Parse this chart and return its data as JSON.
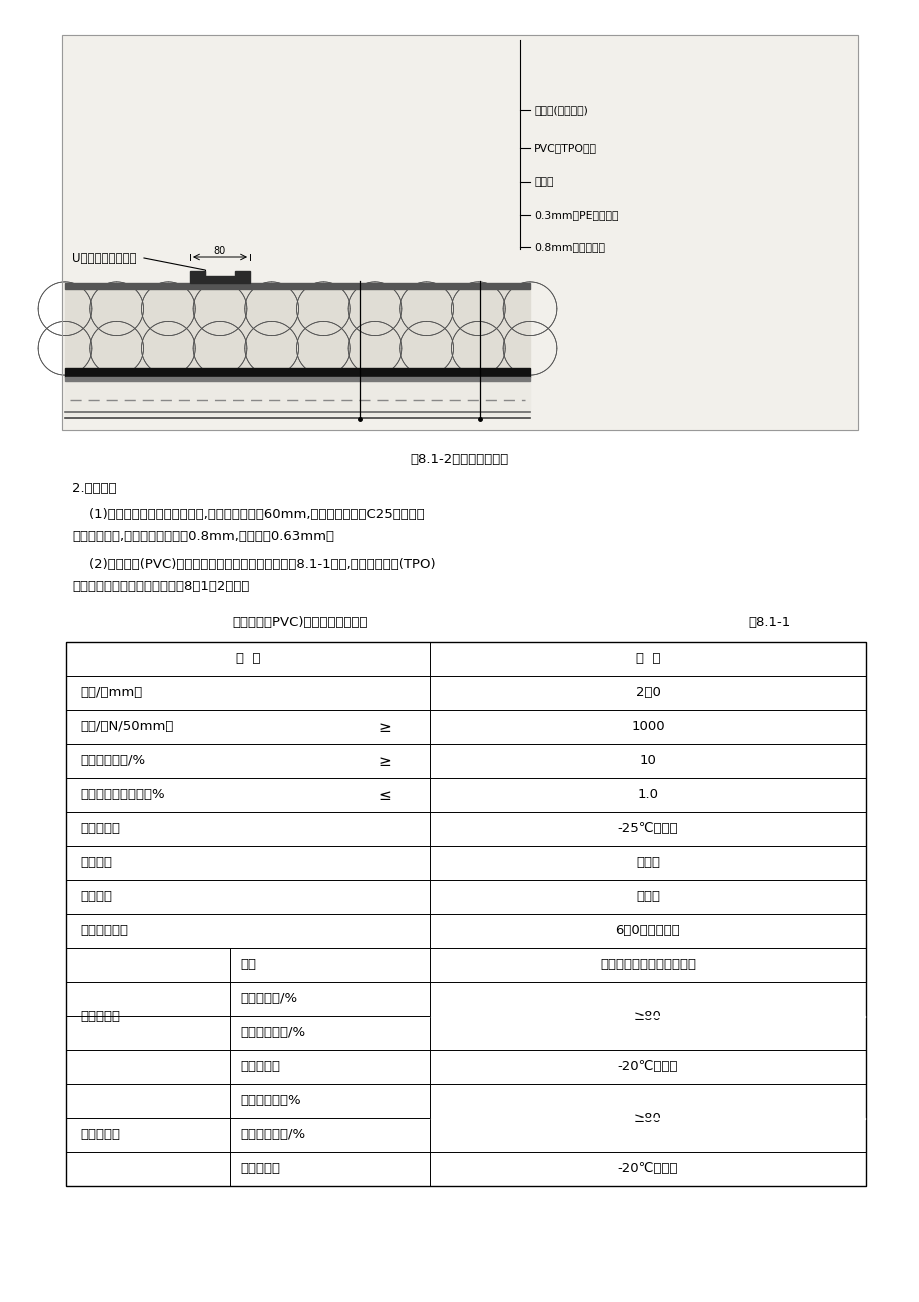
{
  "page_bg": "#ffffff",
  "fig_caption": "图8.1-2线性固定示意图",
  "section_title": "2.技术指标",
  "para1_line1": "    (1)当固定基层为混凝土结构时,其厚度应不小于60mm,强度等级不低于C25；当固定",
  "para1_line2": "基层为钢板时,其厚度一般要求为0.8mm,不得小于0.63mm。",
  "para2_line1": "    (2)聚氯乙烯(PVC)防水卷材的物理化学性能应满足表8.1-1要求,热塑性聚烯烃(TPO)",
  "para2_line2": "防水卷材物理性能指标应满足表8．1－2要求。",
  "table_title_left": "聚氯乙烯（PVC)防水卷材物理性能",
  "table_title_right": "表8.1-1",
  "right_labels": [
    "隔离层(如果需要)",
    "PVC、TPO卷材",
    "保温层",
    "0.3mm厚PE膜隔汽层",
    "0.8mm厚压型钢板"
  ],
  "left_label": "U型压条及固定螺钉",
  "dim_label": "80"
}
